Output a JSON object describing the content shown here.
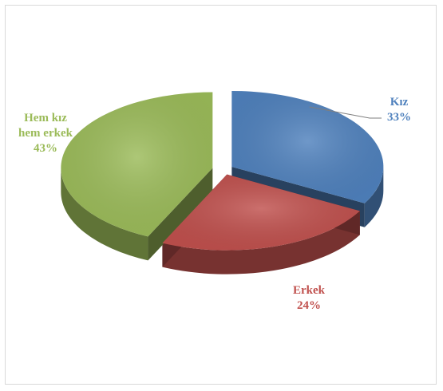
{
  "chart_data": {
    "type": "pie",
    "style": "3d-exploded",
    "title": "",
    "slices": [
      {
        "name": "Kız",
        "value": 33,
        "label": "33%",
        "color": "#4f81bd"
      },
      {
        "name": "Erkek",
        "value": 24,
        "label": "24%",
        "color": "#c0504d"
      },
      {
        "name": "Hem kız hem erkek",
        "value": 43,
        "label": "43%",
        "color": "#9bbb59",
        "name_lines": [
          "Hem kız",
          "hem erkek"
        ]
      }
    ],
    "legend": "none"
  }
}
